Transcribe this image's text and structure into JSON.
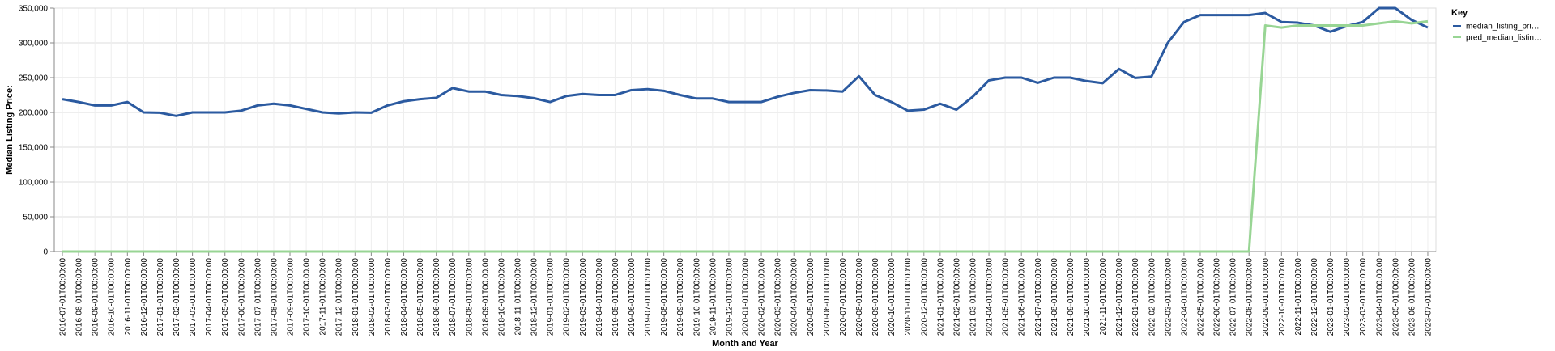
{
  "chart_data": {
    "type": "line",
    "title": "",
    "xlabel": "Month and Year",
    "ylabel": "Median Listing Price:",
    "ylim": [
      0,
      350000
    ],
    "yticks": [
      0,
      50000,
      100000,
      150000,
      200000,
      250000,
      300000,
      350000
    ],
    "ytick_labels": [
      "0",
      "50,000",
      "100,000",
      "150,000",
      "200,000",
      "250,000",
      "300,000",
      "350,000"
    ],
    "grid": true,
    "legend_position": "top-right",
    "legend_title": "Key",
    "x": [
      "2016-07-01T00:00:00",
      "2016-08-01T00:00:00",
      "2016-09-01T00:00:00",
      "2016-10-01T00:00:00",
      "2016-11-01T00:00:00",
      "2016-12-01T00:00:00",
      "2017-01-01T00:00:00",
      "2017-02-01T00:00:00",
      "2017-03-01T00:00:00",
      "2017-04-01T00:00:00",
      "2017-05-01T00:00:00",
      "2017-06-01T00:00:00",
      "2017-07-01T00:00:00",
      "2017-08-01T00:00:00",
      "2017-09-01T00:00:00",
      "2017-10-01T00:00:00",
      "2017-11-01T00:00:00",
      "2017-12-01T00:00:00",
      "2018-01-01T00:00:00",
      "2018-02-01T00:00:00",
      "2018-03-01T00:00:00",
      "2018-04-01T00:00:00",
      "2018-05-01T00:00:00",
      "2018-06-01T00:00:00",
      "2018-07-01T00:00:00",
      "2018-08-01T00:00:00",
      "2018-09-01T00:00:00",
      "2018-10-01T00:00:00",
      "2018-11-01T00:00:00",
      "2018-12-01T00:00:00",
      "2019-01-01T00:00:00",
      "2019-02-01T00:00:00",
      "2019-03-01T00:00:00",
      "2019-04-01T00:00:00",
      "2019-05-01T00:00:00",
      "2019-06-01T00:00:00",
      "2019-07-01T00:00:00",
      "2019-08-01T00:00:00",
      "2019-09-01T00:00:00",
      "2019-10-01T00:00:00",
      "2019-11-01T00:00:00",
      "2019-12-01T00:00:00",
      "2020-01-01T00:00:00",
      "2020-02-01T00:00:00",
      "2020-03-01T00:00:00",
      "2020-04-01T00:00:00",
      "2020-05-01T00:00:00",
      "2020-06-01T00:00:00",
      "2020-07-01T00:00:00",
      "2020-08-01T00:00:00",
      "2020-09-01T00:00:00",
      "2020-10-01T00:00:00",
      "2020-11-01T00:00:00",
      "2020-12-01T00:00:00",
      "2021-01-01T00:00:00",
      "2021-02-01T00:00:00",
      "2021-03-01T00:00:00",
      "2021-04-01T00:00:00",
      "2021-05-01T00:00:00",
      "2021-06-01T00:00:00",
      "2021-07-01T00:00:00",
      "2021-08-01T00:00:00",
      "2021-09-01T00:00:00",
      "2021-10-01T00:00:00",
      "2021-11-01T00:00:00",
      "2021-12-01T00:00:00",
      "2022-01-01T00:00:00",
      "2022-02-01T00:00:00",
      "2022-03-01T00:00:00",
      "2022-04-01T00:00:00",
      "2022-05-01T00:00:00",
      "2022-06-01T00:00:00",
      "2022-07-01T00:00:00",
      "2022-08-01T00:00:00",
      "2022-09-01T00:00:00",
      "2022-10-01T00:00:00",
      "2022-11-01T00:00:00",
      "2022-12-01T00:00:00",
      "2023-01-01T00:00:00",
      "2023-02-01T00:00:00",
      "2023-03-01T00:00:00",
      "2023-04-01T00:00:00",
      "2023-05-01T00:00:00",
      "2023-06-01T00:00:00",
      "2023-07-01T00:00:00"
    ],
    "series": [
      {
        "name": "median_listing_pri…",
        "color": "#2b5aa0",
        "values": [
          219000,
          215000,
          210000,
          210000,
          215000,
          200000,
          199500,
          195000,
          200000,
          200000,
          200000,
          202500,
          210000,
          212500,
          210000,
          205000,
          200000,
          198500,
          200000,
          199500,
          210000,
          216000,
          219000,
          221000,
          235000,
          230000,
          230000,
          225000,
          223500,
          220500,
          215000,
          223500,
          226500,
          225000,
          225000,
          232000,
          233500,
          231000,
          225000,
          220000,
          220000,
          215000,
          215000,
          215000,
          222500,
          228000,
          232000,
          231500,
          230000,
          252000,
          225000,
          215000,
          202500,
          204000,
          212500,
          204000,
          222500,
          246000,
          250000,
          250000,
          242500,
          250000,
          250000,
          245000,
          242000,
          262500,
          249500,
          251500,
          300000,
          330000,
          340000,
          340000,
          340000,
          340000,
          343000,
          330000,
          329000,
          325000,
          316000,
          324000,
          330000,
          350000,
          350000,
          333000,
          322000
        ]
      },
      {
        "name": "pred_median_listin…",
        "color": "#98d594",
        "values": [
          0,
          0,
          0,
          0,
          0,
          0,
          0,
          0,
          0,
          0,
          0,
          0,
          0,
          0,
          0,
          0,
          0,
          0,
          0,
          0,
          0,
          0,
          0,
          0,
          0,
          0,
          0,
          0,
          0,
          0,
          0,
          0,
          0,
          0,
          0,
          0,
          0,
          0,
          0,
          0,
          0,
          0,
          0,
          0,
          0,
          0,
          0,
          0,
          0,
          0,
          0,
          0,
          0,
          0,
          0,
          0,
          0,
          0,
          0,
          0,
          0,
          0,
          0,
          0,
          0,
          0,
          0,
          0,
          0,
          0,
          0,
          0,
          0,
          0,
          325000,
          322000,
          325000,
          325000,
          325000,
          325000,
          325000,
          328000,
          331000,
          328000,
          331000
        ]
      }
    ]
  }
}
